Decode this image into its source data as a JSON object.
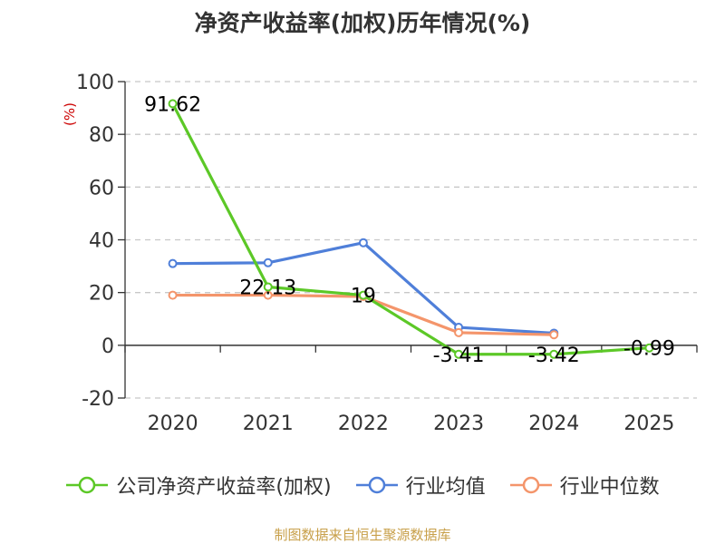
{
  "chart_data": {
    "type": "line",
    "title": "净资产收益率(加权)历年情况(%)",
    "ylabel": "(%)",
    "xlabel": "",
    "categories": [
      "2020",
      "2021",
      "2022",
      "2023",
      "2024",
      "2025"
    ],
    "ylim": [
      -20,
      100
    ],
    "yticks": [
      -20,
      0,
      20,
      40,
      60,
      80,
      100
    ],
    "grid": true,
    "legend_position": "bottom",
    "series": [
      {
        "name": "公司净资产收益率(加权)",
        "color": "#5cc827",
        "values": [
          91.62,
          22.13,
          19,
          -3.41,
          -3.42,
          -0.99
        ],
        "labels": [
          "91.62",
          "22.13",
          "19",
          "-3.41",
          "-3.42",
          "-0.99"
        ]
      },
      {
        "name": "行业均值",
        "color": "#4f7fd9",
        "values": [
          31,
          31.3,
          38.9,
          6.8,
          4.6,
          null
        ]
      },
      {
        "name": "行业中位数",
        "color": "#f4956b",
        "values": [
          19,
          19,
          18.5,
          4.8,
          4,
          null
        ]
      }
    ]
  },
  "footer": {
    "source": "制图数据来自恒生聚源数据库"
  }
}
